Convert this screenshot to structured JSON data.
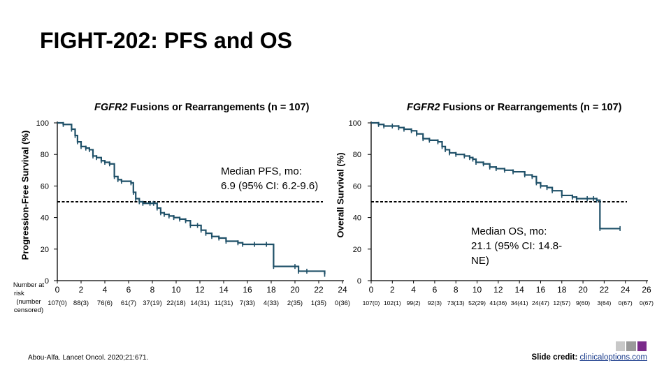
{
  "slide": {
    "title": "FIGHT-202: PFS and OS",
    "citation": "Abou-Alfa. Lancet Oncol. 2020;21:671.",
    "credit_label": "Slide credit:",
    "credit_link": "clinicaloptions.com",
    "risk_label_lines": [
      "Number at",
      "risk",
      "(number",
      "censored)"
    ]
  },
  "colors": {
    "curve": "#1f5068",
    "reference": "#000000",
    "axis": "#000000",
    "logo": [
      "#c8c8c8",
      "#9a9a9a",
      "#7a2a8a"
    ]
  },
  "chart_data": [
    {
      "type": "line",
      "title_italic": "FGFR2",
      "title_rest": " Fusions or Rearrangements (n = 107)",
      "ylabel": "Progression-Free Survival (%)",
      "xlabel": "",
      "xlim": [
        0,
        24
      ],
      "ylim": [
        0,
        100
      ],
      "x_ticks": [
        0,
        2,
        4,
        6,
        8,
        10,
        12,
        14,
        16,
        18,
        20,
        22,
        24
      ],
      "y_ticks": [
        0,
        20,
        40,
        60,
        80,
        100
      ],
      "median_line_y": 50,
      "median_text": [
        "Median PFS, mo:",
        "6.9 (95% CI: 6.2-9.6)"
      ],
      "risk_table": [
        "107(0)",
        "88(3)",
        "76(6)",
        "61(7)",
        "37(19)",
        "22(18)",
        "14(31)",
        "11(31)",
        "7(33)",
        "4(33)",
        "2(35)",
        "1(35)",
        "0(36)"
      ],
      "series": [
        {
          "x": [
            0,
            0.5,
            1.2,
            1.5,
            1.7,
            2.0,
            2.4,
            2.7,
            3.0,
            3.3,
            3.7,
            4.0,
            4.4,
            4.8,
            5.1,
            5.4,
            6.2,
            6.4,
            6.6,
            6.9,
            7.2,
            7.8,
            8.1,
            8.4,
            8.7,
            9.0,
            9.4,
            9.8,
            10.3,
            10.8,
            11.2,
            11.8,
            12.1,
            12.5,
            13.0,
            13.6,
            14.2,
            15.2,
            15.6,
            16.6,
            17.6,
            18.2,
            20.0,
            20.3,
            21.0,
            22.5
          ],
          "y": [
            100,
            99,
            96,
            92,
            88,
            85,
            84,
            83,
            79,
            78,
            76,
            75,
            74,
            66,
            64,
            63,
            62,
            56,
            52,
            50,
            49,
            49,
            49,
            46,
            43,
            42,
            41,
            40,
            39,
            38,
            35,
            35,
            32,
            30,
            28,
            27,
            25,
            24,
            23,
            23,
            23,
            9,
            9,
            6,
            6,
            4
          ]
        }
      ]
    },
    {
      "type": "line",
      "title_italic": "FGFR2",
      "title_rest": " Fusions or Rearrangements (n = 107)",
      "ylabel": "Overall Survival (%)",
      "xlabel": "",
      "xlim": [
        0,
        26
      ],
      "ylim": [
        0,
        100
      ],
      "x_ticks": [
        0,
        2,
        4,
        6,
        8,
        10,
        12,
        14,
        16,
        18,
        20,
        22,
        24,
        26
      ],
      "y_ticks": [
        0,
        20,
        40,
        60,
        80,
        100
      ],
      "median_line_y": 50,
      "median_text": [
        "Median OS, mo:",
        "21.1 (95% CI: 14.8-",
        "NE)"
      ],
      "risk_table": [
        "107(0)",
        "102(1)",
        "99(2)",
        "92(3)",
        "73(13)",
        "52(29)",
        "41(36)",
        "34(41)",
        "24(47)",
        "12(57)",
        "9(60)",
        "3(64)",
        "0(67)",
        "0(67)"
      ],
      "series": [
        {
          "x": [
            0,
            0.7,
            1.2,
            2.0,
            2.6,
            3.1,
            3.8,
            4.3,
            4.9,
            5.5,
            6.3,
            6.7,
            7.0,
            7.4,
            8.0,
            8.8,
            9.3,
            9.6,
            9.9,
            10.6,
            11.2,
            11.8,
            12.6,
            13.4,
            14.5,
            15.2,
            15.6,
            16.0,
            16.6,
            17.1,
            18.0,
            19.0,
            19.4,
            20.4,
            21.0,
            21.3,
            21.6,
            23.5
          ],
          "y": [
            100,
            99,
            98,
            98,
            97,
            96,
            95,
            93,
            90,
            89,
            88,
            85,
            83,
            81,
            80,
            79,
            78,
            77,
            75,
            74,
            72,
            71,
            70,
            69,
            67,
            66,
            62,
            60,
            59,
            57,
            54,
            53,
            52,
            52,
            52,
            51,
            33,
            33
          ]
        }
      ]
    }
  ]
}
